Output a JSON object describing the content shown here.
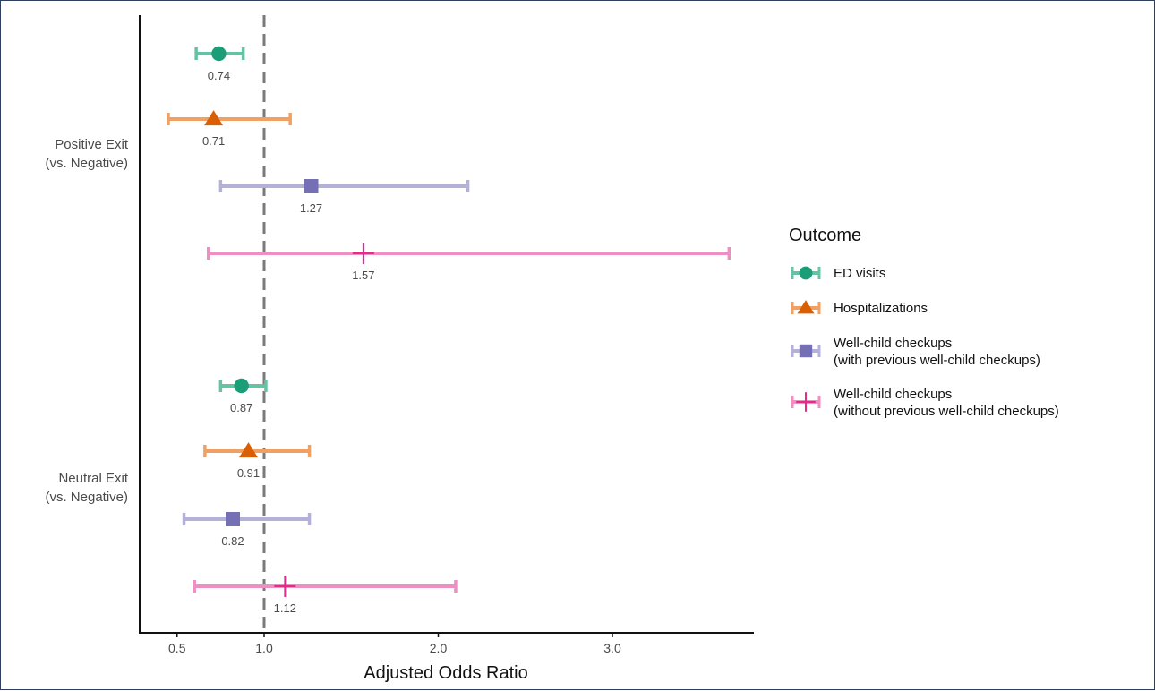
{
  "chart_data": {
    "type": "forest",
    "xlabel": "Adjusted Odds Ratio",
    "xlim": [
      0.22,
      3.8
    ],
    "xticks": [
      0.5,
      1.0,
      2.0,
      3.0
    ],
    "xtick_labels": [
      "0.5",
      "1.0",
      "2.0",
      "3.0"
    ],
    "reference_line": 1.0,
    "groups": [
      {
        "label": [
          "Positive Exit",
          "(vs. Negative)"
        ]
      },
      {
        "label": [
          "Neutral Exit",
          "(vs. Negative)"
        ]
      }
    ],
    "series": [
      {
        "name": "ED visits",
        "shape": "circle",
        "color": "#1b9e77",
        "ci_color": "#66c2a5"
      },
      {
        "name": "Hospitalizations",
        "shape": "triangle",
        "color": "#d95f02",
        "ci_color": "#f0a063"
      },
      {
        "name": "Well-child checkups\n(with previous well-child checkups)",
        "shape": "square",
        "color": "#7570b3",
        "ci_color": "#b4b1d9"
      },
      {
        "name": "Well-child checkups\n(without previous well-child checkups)",
        "shape": "plus",
        "color": "#e7298a",
        "ci_color": "#ef8ec3"
      }
    ],
    "points": [
      {
        "group": 0,
        "series": 0,
        "or": 0.74,
        "lo": 0.61,
        "hi": 0.88,
        "label": "0.74"
      },
      {
        "group": 0,
        "series": 1,
        "or": 0.71,
        "lo": 0.45,
        "hi": 1.15,
        "label": "0.71"
      },
      {
        "group": 0,
        "series": 2,
        "or": 1.27,
        "lo": 0.75,
        "hi": 2.17,
        "label": "1.27"
      },
      {
        "group": 0,
        "series": 3,
        "or": 1.57,
        "lo": 0.68,
        "hi": 3.67,
        "label": "1.57"
      },
      {
        "group": 1,
        "series": 0,
        "or": 0.87,
        "lo": 0.75,
        "hi": 1.01,
        "label": "0.87"
      },
      {
        "group": 1,
        "series": 1,
        "or": 0.91,
        "lo": 0.66,
        "hi": 1.26,
        "label": "0.91"
      },
      {
        "group": 1,
        "series": 2,
        "or": 0.82,
        "lo": 0.54,
        "hi": 1.26,
        "label": "0.82"
      },
      {
        "group": 1,
        "series": 3,
        "or": 1.12,
        "lo": 0.6,
        "hi": 2.1,
        "label": "1.12"
      }
    ],
    "legend": {
      "title": "Outcome",
      "position": "right"
    },
    "grid": false
  }
}
